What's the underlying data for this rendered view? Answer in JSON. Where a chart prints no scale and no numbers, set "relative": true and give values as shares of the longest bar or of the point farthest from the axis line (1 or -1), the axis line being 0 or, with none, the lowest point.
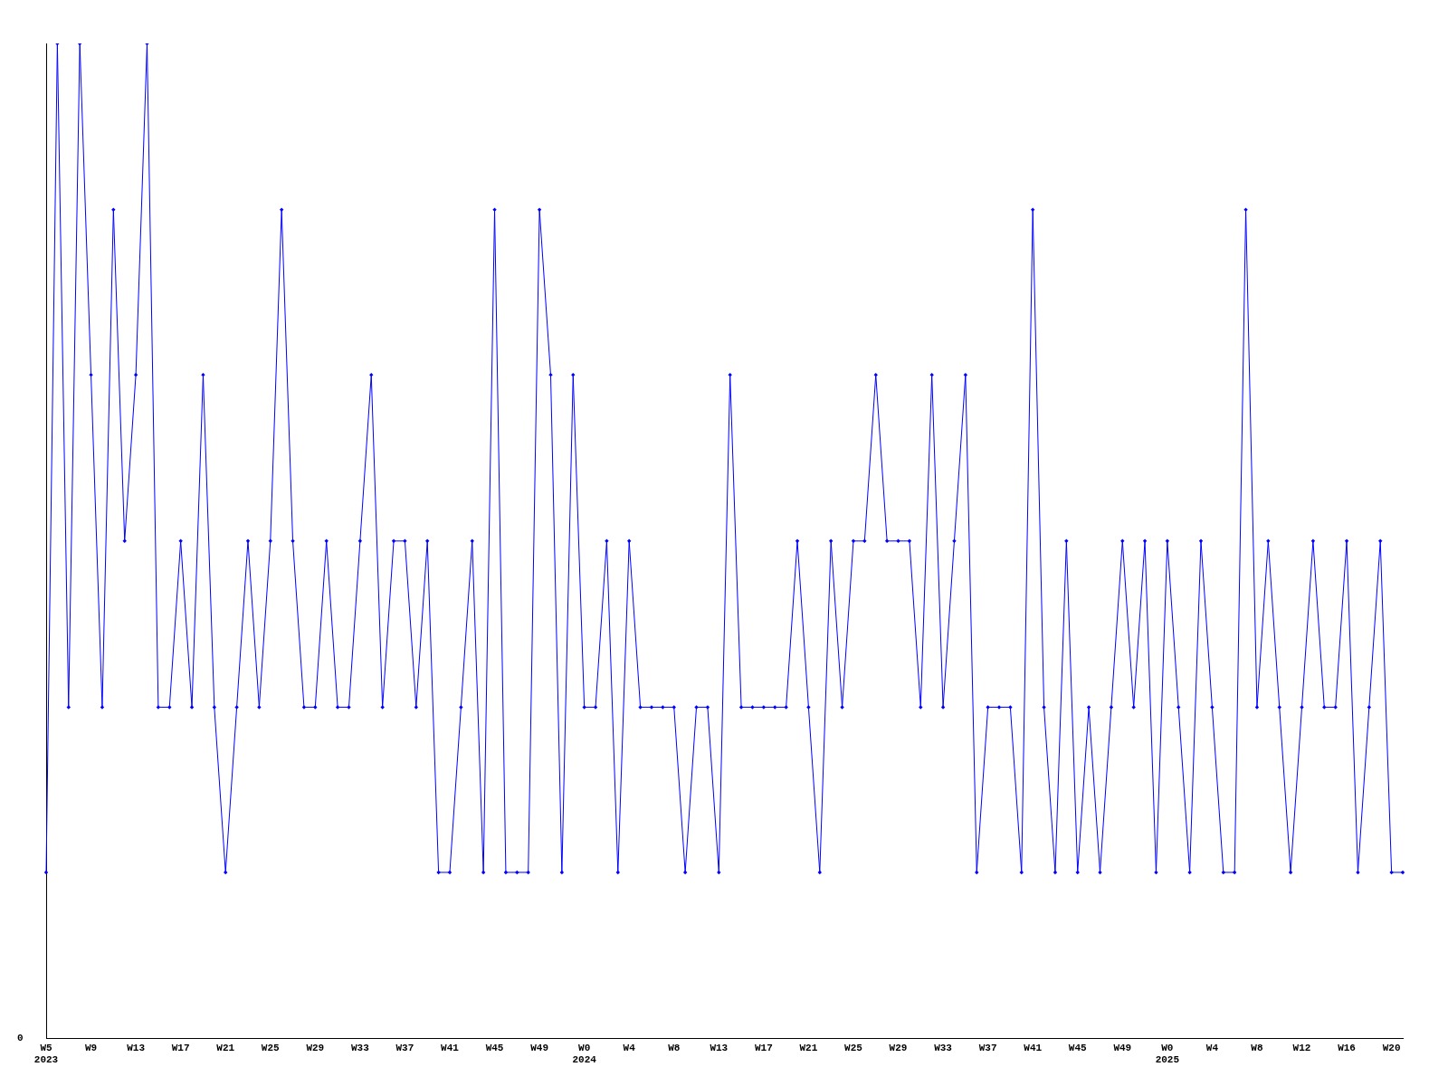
{
  "chart_data": {
    "type": "line",
    "relative": true,
    "color": "#0000ff",
    "marker": "diamond",
    "grid": false,
    "legend": false,
    "categories": [
      "W5\n2023",
      null,
      null,
      null,
      "W9",
      null,
      null,
      null,
      "W13",
      null,
      null,
      null,
      "W17",
      null,
      null,
      null,
      "W21",
      null,
      null,
      null,
      "W25",
      null,
      null,
      null,
      "W29",
      null,
      null,
      null,
      "W33",
      null,
      null,
      null,
      "W37",
      null,
      null,
      null,
      "W41",
      null,
      null,
      null,
      "W45",
      null,
      null,
      null,
      "W49",
      null,
      null,
      null,
      "W0\n2024",
      null,
      null,
      null,
      "W4",
      null,
      null,
      null,
      "W8",
      null,
      null,
      null,
      "W13",
      null,
      null,
      null,
      "W17",
      null,
      null,
      null,
      "W21",
      null,
      null,
      null,
      "W25",
      null,
      null,
      null,
      "W29",
      null,
      null,
      null,
      "W33",
      null,
      null,
      null,
      "W37",
      null,
      null,
      null,
      "W41",
      null,
      null,
      null,
      "W45",
      null,
      null,
      null,
      "W49",
      null,
      null,
      null,
      "W0\n2025",
      null,
      null,
      null,
      "W4",
      null,
      null,
      null,
      "W8",
      null,
      null,
      null,
      "W12",
      null,
      null,
      null,
      "W16",
      null,
      null,
      null,
      "W20",
      null
    ],
    "values": [
      0.167,
      1,
      0.333,
      1,
      0.667,
      0.333,
      0.833,
      0.5,
      0.667,
      1,
      0.333,
      0.333,
      0.5,
      0.333,
      0.667,
      0.333,
      0.167,
      0.333,
      0.5,
      0.333,
      0.5,
      0.833,
      0.5,
      0.333,
      0.333,
      0.5,
      0.333,
      0.333,
      0.5,
      0.667,
      0.333,
      0.5,
      0.5,
      0.333,
      0.5,
      0.167,
      0.167,
      0.333,
      0.5,
      0.167,
      0.833,
      0.167,
      0.167,
      0.167,
      0.833,
      0.667,
      0.167,
      0.667,
      0.333,
      0.333,
      0.5,
      0.167,
      0.5,
      0.333,
      0.333,
      0.333,
      0.333,
      0.167,
      0.333,
      0.333,
      0.167,
      0.667,
      0.333,
      0.333,
      0.333,
      0.333,
      0.333,
      0.5,
      0.333,
      0.167,
      0.5,
      0.333,
      0.5,
      0.5,
      0.667,
      0.5,
      0.5,
      0.5,
      0.333,
      0.667,
      0.333,
      0.5,
      0.667,
      0.167,
      0.333,
      0.333,
      0.333,
      0.167,
      0.833,
      0.333,
      0.167,
      0.5,
      0.167,
      0.333,
      0.167,
      0.333,
      0.5,
      0.333,
      0.5,
      0.167,
      0.5,
      0.333,
      0.167,
      0.5,
      0.333,
      0.167,
      0.167,
      0.833,
      0.333,
      0.5,
      0.333,
      0.167,
      0.333,
      0.5,
      0.333,
      0.333,
      0.5,
      0.167,
      0.333,
      0.5,
      0.167,
      0.167
    ],
    "annotations": [
      "0"
    ]
  }
}
